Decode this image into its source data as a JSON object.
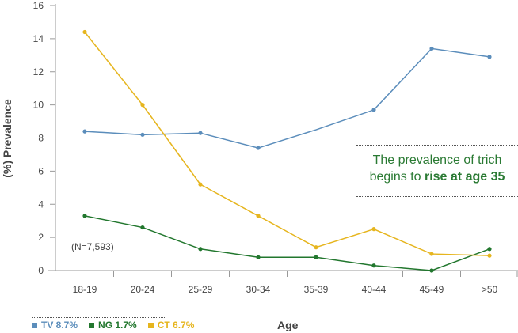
{
  "chart_data": {
    "type": "line",
    "title": "",
    "xlabel": "Age",
    "ylabel": "(%) Prevalence",
    "ylim": [
      0,
      16
    ],
    "yticks": [
      0,
      2,
      4,
      6,
      8,
      10,
      12,
      14,
      16
    ],
    "categories": [
      "18-19",
      "20-24",
      "25-29",
      "30-34",
      "35-39",
      "40-44",
      "45-49",
      ">50"
    ],
    "grid": false,
    "series": [
      {
        "name": "TV 8.7%",
        "color": "#5b8dbb",
        "values": [
          8.4,
          8.2,
          8.3,
          7.4,
          8.5,
          9.7,
          13.4,
          12.9
        ],
        "markers": [
          true,
          true,
          true,
          true,
          false,
          true,
          true,
          true
        ]
      },
      {
        "name": "NG 1.7%",
        "color": "#22772e",
        "values": [
          3.3,
          2.6,
          1.3,
          0.8,
          0.8,
          0.3,
          0.0,
          1.3
        ],
        "markers": [
          true,
          true,
          true,
          true,
          true,
          true,
          true,
          true
        ]
      },
      {
        "name": "CT 6.7%",
        "color": "#e6b51e",
        "values": [
          14.4,
          10.0,
          5.2,
          3.3,
          1.4,
          2.5,
          1.0,
          0.9
        ],
        "markers": [
          true,
          true,
          true,
          true,
          true,
          true,
          true,
          true
        ]
      }
    ],
    "legend_position": "bottom-left",
    "annotations": {
      "sample_size": "(N=7,593)",
      "note_line1": "The prevalence of trich",
      "note_line2_plain": "begins to ",
      "note_line2_bold": "rise at age 35"
    }
  }
}
